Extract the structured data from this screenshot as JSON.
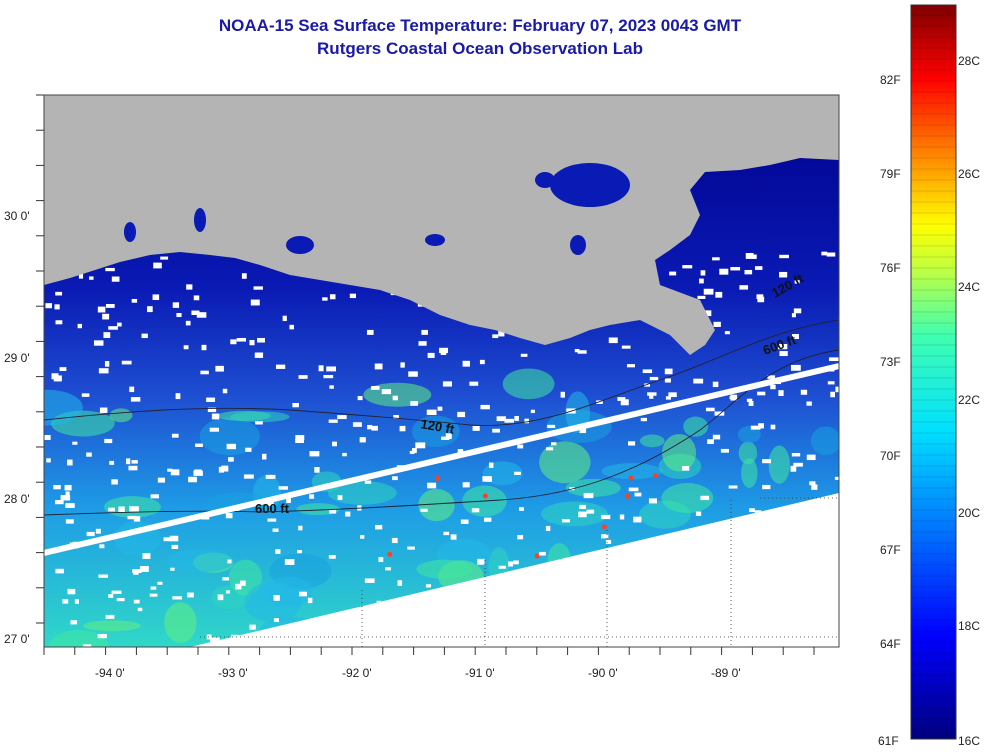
{
  "title": {
    "line1": "NOAA-15 Sea Surface Temperature:  February 07, 2023 0043 GMT",
    "line2": "Rutgers Coastal Ocean Observation Lab"
  },
  "map": {
    "region": "Louisiana / Gulf of Mexico shelf",
    "lat_labels": [
      "30 0'",
      "29 0'",
      "28 0'",
      "27 0'"
    ],
    "lon_labels": [
      "-94 0'",
      "-93 0'",
      "-92 0'",
      "-91 0'",
      "-90 0'",
      "-89 0'"
    ],
    "contour_labels": [
      "120 ft",
      "600 ft",
      "600 ft",
      "120 ft"
    ],
    "colors": {
      "land": "#b4b4b4",
      "cold": "#00008c",
      "mid": "#1e50d2",
      "warm": "#28e0c8",
      "cloud": "#ffffff",
      "pass_edge": "#ffffff"
    }
  },
  "colorbar": {
    "fahrenheit_labels": [
      "82F",
      "79F",
      "76F",
      "73F",
      "70F",
      "67F",
      "64F",
      "61F"
    ],
    "celsius_labels": [
      "28C",
      "26C",
      "24C",
      "22C",
      "20C",
      "18C",
      "16C"
    ],
    "range_f": [
      61,
      84
    ],
    "range_c": [
      16,
      29
    ]
  }
}
